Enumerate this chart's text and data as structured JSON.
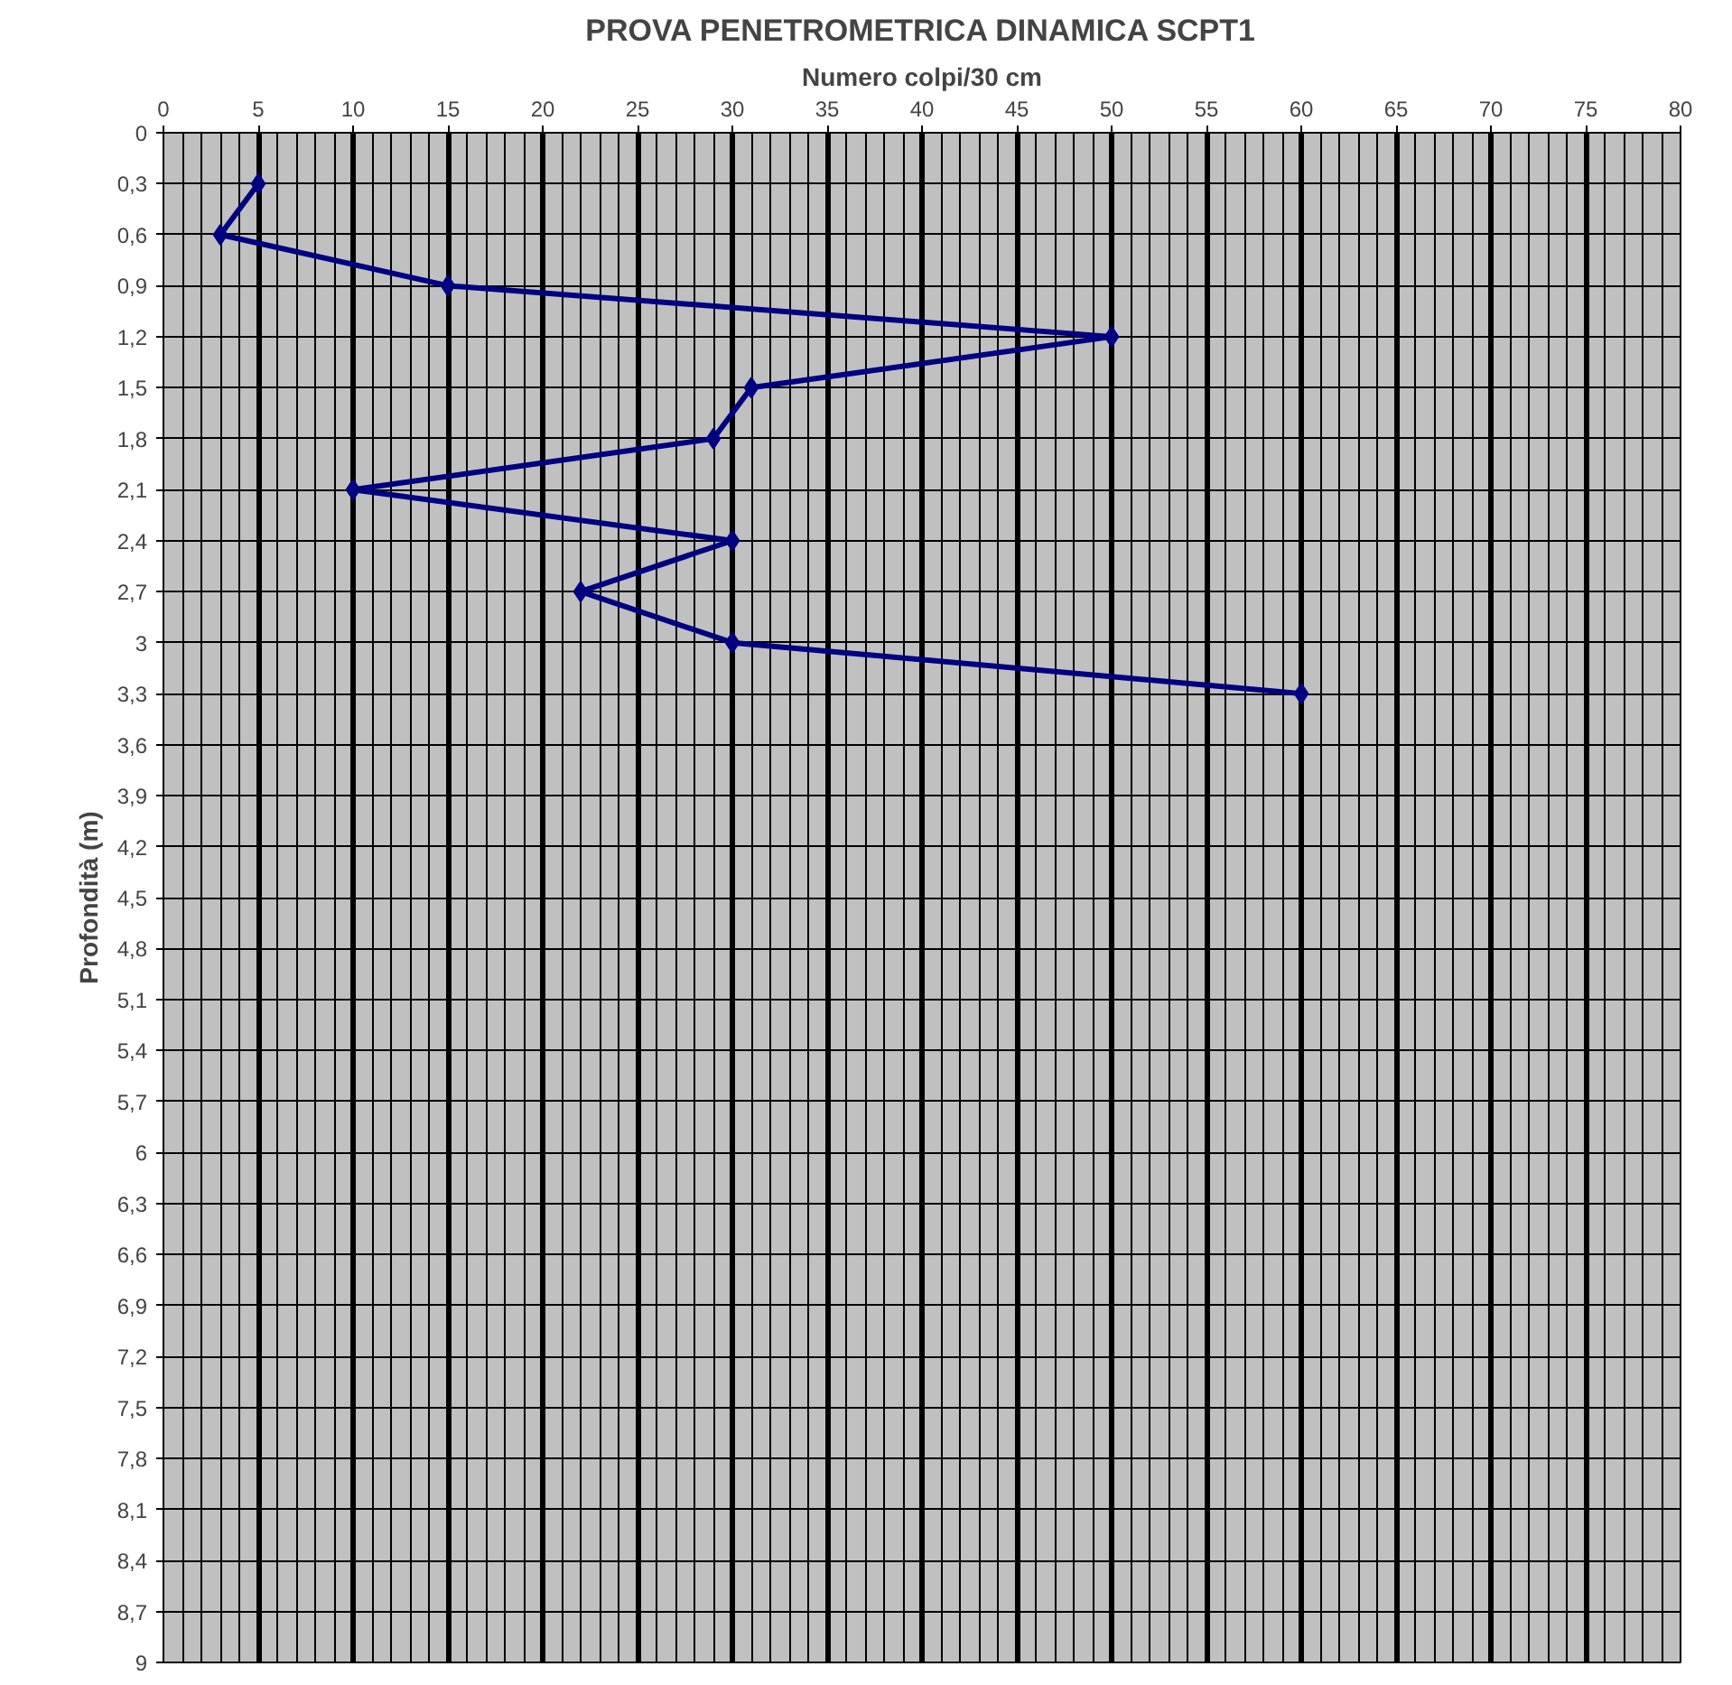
{
  "chart_data": {
    "type": "line",
    "title": "PROVA PENETROMETRICA DINAMICA SCPT1",
    "xlabel": "Numero colpi/30 cm",
    "ylabel": "Profondità (m)",
    "x": [
      5,
      3,
      15,
      50,
      31,
      29,
      10,
      30,
      22,
      30,
      60
    ],
    "series": [
      {
        "color": "#000080",
        "values": [
          0.3,
          0.6,
          0.9,
          1.2,
          1.5,
          1.8,
          2.1,
          2.4,
          2.7,
          3.0,
          3.3
        ]
      }
    ],
    "xlim": [
      0,
      80
    ],
    "xticks": [
      0,
      5,
      10,
      15,
      20,
      25,
      30,
      35,
      40,
      45,
      50,
      55,
      60,
      65,
      70,
      75,
      80
    ],
    "ylim": [
      9,
      0
    ],
    "yticks": [
      0,
      {
        "value": 0.3,
        "label": "0,3"
      },
      {
        "value": 0.6,
        "label": "0,6"
      },
      {
        "value": 0.9,
        "label": "0,9"
      },
      {
        "value": 1.2,
        "label": "1,2"
      },
      {
        "value": 1.5,
        "label": "1,5"
      },
      {
        "value": 1.8,
        "label": "1,8"
      },
      {
        "value": 2.1,
        "label": "2,1"
      },
      {
        "value": 2.4,
        "label": "2,4"
      },
      {
        "value": 2.7,
        "label": "2,7"
      },
      3,
      {
        "value": 3.3,
        "label": "3,3"
      },
      {
        "value": 3.6,
        "label": "3,6"
      },
      {
        "value": 3.9,
        "label": "3,9"
      },
      {
        "value": 4.2,
        "label": "4,2"
      },
      {
        "value": 4.5,
        "label": "4,5"
      },
      {
        "value": 4.8,
        "label": "4,8"
      },
      {
        "value": 5.1,
        "label": "5,1"
      },
      {
        "value": 5.4,
        "label": "5,4"
      },
      {
        "value": 5.7,
        "label": "5,7"
      },
      6,
      {
        "value": 6.3,
        "label": "6,3"
      },
      {
        "value": 6.6,
        "label": "6,6"
      },
      {
        "value": 6.9,
        "label": "6,9"
      },
      {
        "value": 7.2,
        "label": "7,2"
      },
      {
        "value": 7.5,
        "label": "7,5"
      },
      {
        "value": 7.8,
        "label": "7,8"
      },
      {
        "value": 8.1,
        "label": "8,1"
      },
      {
        "value": 8.4,
        "label": "8,4"
      },
      {
        "value": 8.7,
        "label": "8,7"
      },
      9
    ],
    "grid": true,
    "marker": "diamond",
    "line_style": "solid"
  }
}
